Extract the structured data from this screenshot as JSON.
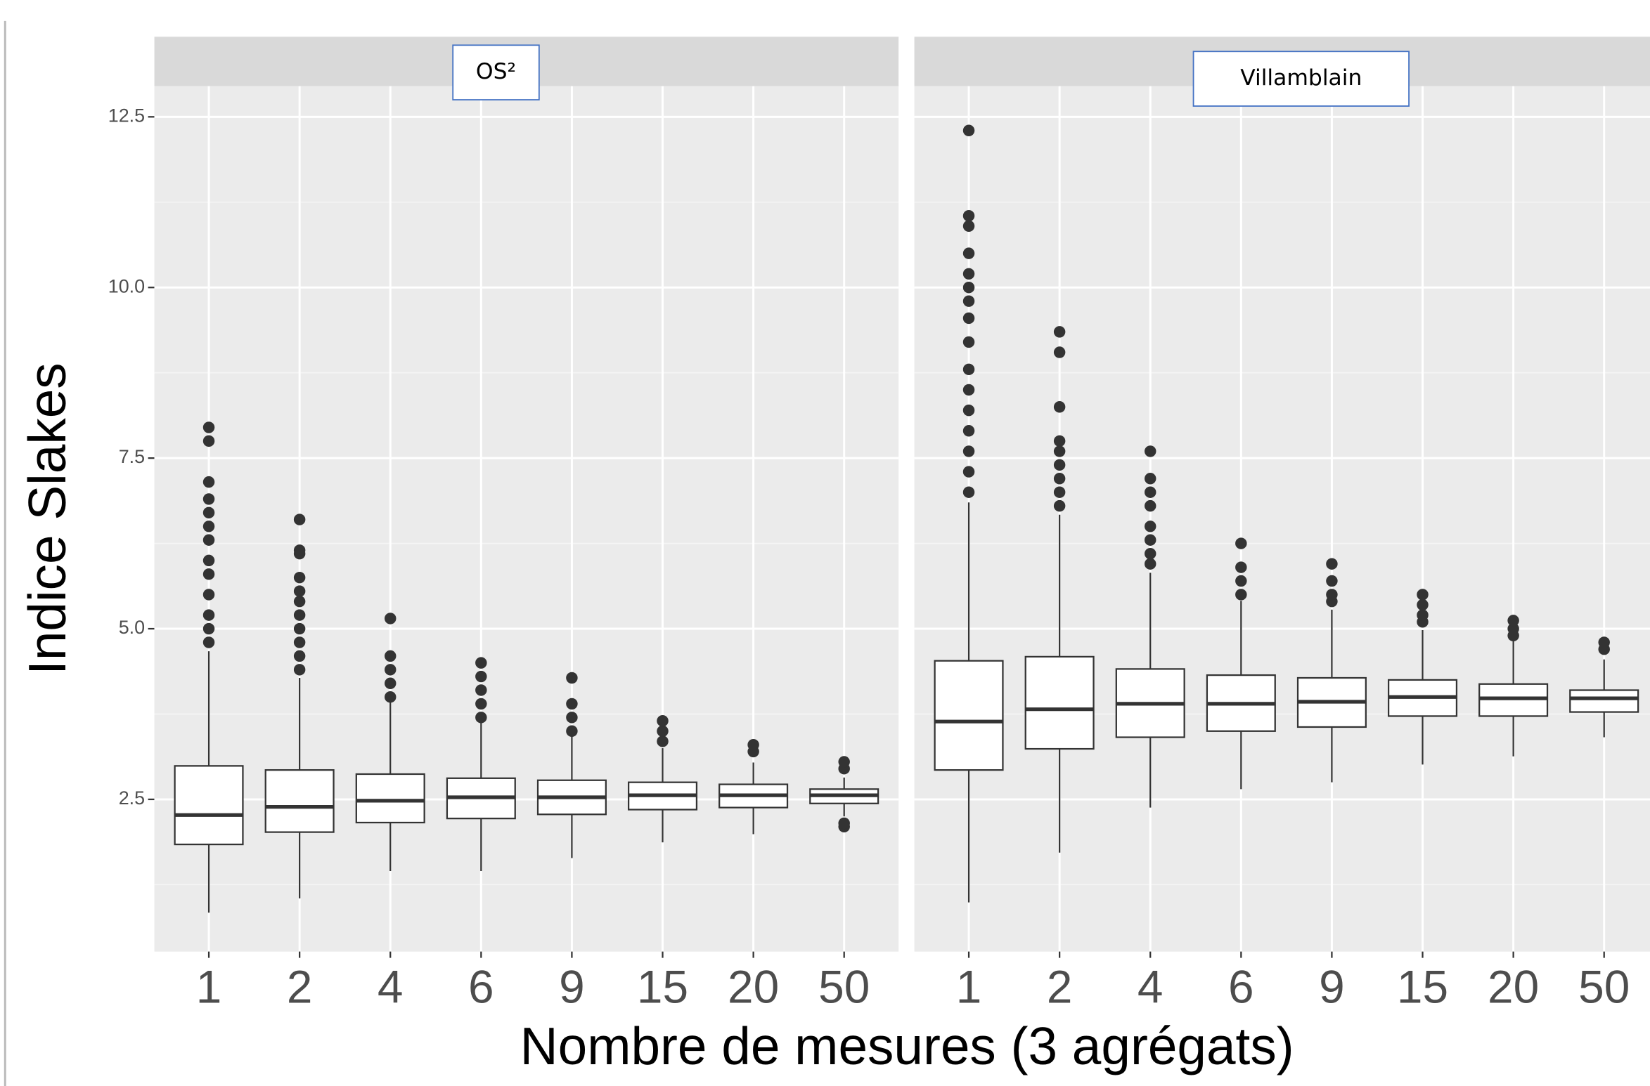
{
  "chart_data": {
    "type": "box",
    "y_label": "Indice Slakes",
    "x_label": "Nombre de mesures (3 agrégats)",
    "categories": [
      "1",
      "2",
      "4",
      "6",
      "9",
      "15",
      "20",
      "50"
    ],
    "ylim": [
      0.27,
      12.95
    ],
    "yticks": [
      2.5,
      {
        "value": 5,
        "label": "5.0"
      },
      7.5,
      {
        "value": 10,
        "label": "10.0"
      },
      12.5
    ],
    "grid": true,
    "color": "#333333",
    "panels": [
      {
        "name": "OS²",
        "boxes": [
          {
            "min": 0.84,
            "q1": 1.84,
            "median": 2.27,
            "q3": 2.99,
            "max": 4.67,
            "outliers": [
              4.8,
              5.0,
              5.2,
              5.5,
              5.8,
              6.0,
              6.3,
              6.5,
              6.7,
              6.9,
              7.15,
              7.75,
              7.95
            ]
          },
          {
            "min": 1.05,
            "q1": 2.02,
            "median": 2.39,
            "q3": 2.93,
            "max": 4.28,
            "outliers": [
              4.4,
              4.6,
              4.8,
              5.0,
              5.2,
              5.4,
              5.55,
              5.75,
              6.1,
              6.15,
              6.6
            ]
          },
          {
            "min": 1.45,
            "q1": 2.16,
            "median": 2.48,
            "q3": 2.87,
            "max": 3.93,
            "outliers": [
              4.0,
              4.2,
              4.4,
              4.6,
              5.15
            ]
          },
          {
            "min": 1.45,
            "q1": 2.22,
            "median": 2.53,
            "q3": 2.81,
            "max": 3.62,
            "outliers": [
              3.7,
              3.9,
              4.1,
              4.3,
              4.5
            ]
          },
          {
            "min": 1.64,
            "q1": 2.28,
            "median": 2.53,
            "q3": 2.78,
            "max": 3.44,
            "outliers": [
              3.5,
              3.7,
              3.9,
              4.28
            ]
          },
          {
            "min": 1.87,
            "q1": 2.35,
            "median": 2.56,
            "q3": 2.75,
            "max": 3.25,
            "outliers": [
              3.35,
              3.5,
              3.65
            ]
          },
          {
            "min": 1.99,
            "q1": 2.38,
            "median": 2.56,
            "q3": 2.72,
            "max": 3.04,
            "outliers": [
              3.2,
              3.3
            ]
          },
          {
            "min": 2.25,
            "q1": 2.44,
            "median": 2.56,
            "q3": 2.65,
            "max": 2.82,
            "outliers": [
              2.1,
              2.15,
              2.95,
              3.05
            ]
          }
        ]
      },
      {
        "name": "Villamblain",
        "boxes": [
          {
            "min": 0.99,
            "q1": 2.93,
            "median": 3.64,
            "q3": 4.53,
            "max": 6.85,
            "outliers": [
              7.0,
              7.3,
              7.6,
              7.9,
              8.2,
              8.5,
              8.8,
              9.2,
              9.55,
              9.8,
              10.0,
              10.2,
              10.5,
              10.9,
              11.05,
              12.3
            ]
          },
          {
            "min": 1.72,
            "q1": 3.24,
            "median": 3.82,
            "q3": 4.59,
            "max": 6.67,
            "outliers": [
              6.8,
              7.0,
              7.2,
              7.4,
              7.6,
              7.75,
              8.25,
              9.05,
              9.35
            ]
          },
          {
            "min": 2.38,
            "q1": 3.41,
            "median": 3.9,
            "q3": 4.41,
            "max": 5.82,
            "outliers": [
              5.95,
              6.1,
              6.3,
              6.5,
              6.8,
              7.0,
              7.2,
              7.6
            ]
          },
          {
            "min": 2.65,
            "q1": 3.5,
            "median": 3.9,
            "q3": 4.32,
            "max": 5.41,
            "outliers": [
              5.5,
              5.7,
              5.9,
              6.25
            ]
          },
          {
            "min": 2.75,
            "q1": 3.56,
            "median": 3.93,
            "q3": 4.28,
            "max": 5.28,
            "outliers": [
              5.4,
              5.5,
              5.7,
              5.95
            ]
          },
          {
            "min": 3.01,
            "q1": 3.72,
            "median": 4.0,
            "q3": 4.25,
            "max": 4.98,
            "outliers": [
              5.1,
              5.2,
              5.35,
              5.5
            ]
          },
          {
            "min": 3.13,
            "q1": 3.72,
            "median": 3.98,
            "q3": 4.19,
            "max": 4.82,
            "outliers": [
              4.9,
              5.0,
              5.12
            ]
          },
          {
            "min": 3.41,
            "q1": 3.78,
            "median": 3.98,
            "q3": 4.1,
            "max": 4.55,
            "outliers": [
              4.7,
              4.8
            ]
          }
        ]
      }
    ]
  }
}
